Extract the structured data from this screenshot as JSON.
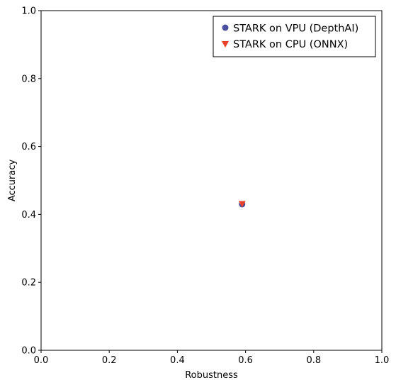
{
  "chart_data": {
    "type": "scatter",
    "xlabel": "Robustness",
    "ylabel": "Accuracy",
    "xlim": [
      0,
      1
    ],
    "ylim": [
      0,
      1
    ],
    "x_ticks": [
      "0.0",
      "0.2",
      "0.4",
      "0.6",
      "0.8",
      "1.0"
    ],
    "y_ticks": [
      "0.0",
      "0.2",
      "0.4",
      "0.6",
      "0.8",
      "1.0"
    ],
    "grid": false,
    "legend_position": "top-right",
    "series": [
      {
        "name": "STARK on VPU (DepthAI)",
        "marker": "circle",
        "color": "#4a4e9c",
        "points": [
          {
            "x": 0.59,
            "y": 0.43
          }
        ]
      },
      {
        "name": "STARK on CPU (ONNX)",
        "marker": "triangle-down",
        "color": "#e8402a",
        "points": [
          {
            "x": 0.59,
            "y": 0.43
          }
        ]
      }
    ]
  }
}
